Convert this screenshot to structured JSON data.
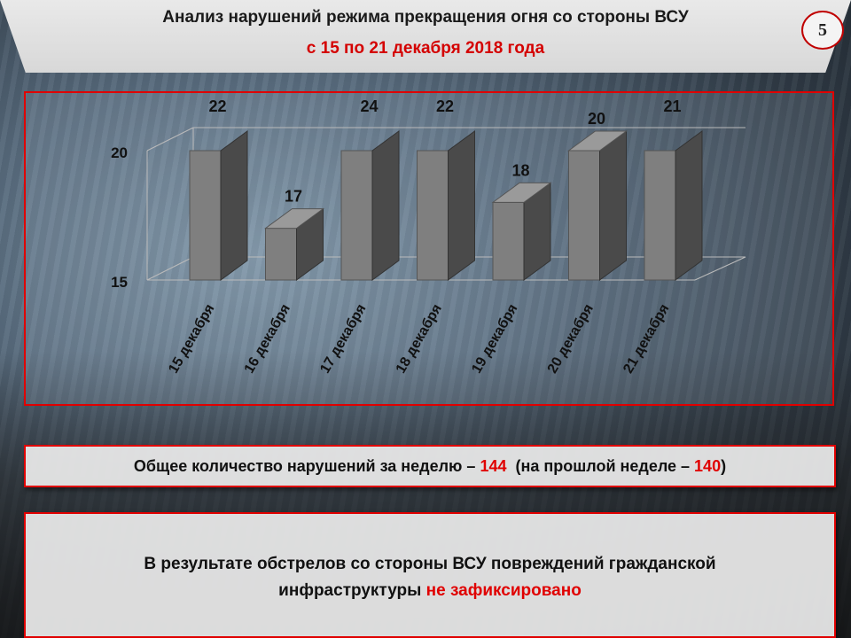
{
  "header": {
    "title": "Анализ нарушений режима прекращения огня со стороны ВСУ",
    "subtitle": "с 15 по 21 декабря 2018 года",
    "page_number": "5"
  },
  "chart_data": {
    "type": "bar",
    "categories": [
      "15 декабря",
      "16 декабря",
      "17 декабря",
      "18 декабря",
      "19 декабря",
      "20 декабря",
      "21 декабря"
    ],
    "values": [
      22,
      17,
      24,
      22,
      18,
      20,
      21
    ],
    "data_labels": [
      "22",
      "17",
      "24",
      "22",
      "18",
      "20",
      "21"
    ],
    "y_ticks": [
      "15",
      "20"
    ],
    "ylim": [
      15,
      20
    ],
    "style": "3d-column",
    "bar_color": "#7f7f7f",
    "legend": "none"
  },
  "summary": {
    "prefix": "Общее количество нарушений за неделю – ",
    "this_week": "144",
    "middle": "  (на прошлой неделе – ",
    "last_week": "140",
    "suffix": ")"
  },
  "result": {
    "line1": "В результате обстрелов со стороны ВСУ повреждений гражданской",
    "line2_prefix": "инфраструктуры ",
    "line2_highlight": "не зафиксировано"
  },
  "colors": {
    "accent_red": "#e00000",
    "bar_front": "#7f7f7f",
    "bar_side": "#4a4a4a"
  }
}
